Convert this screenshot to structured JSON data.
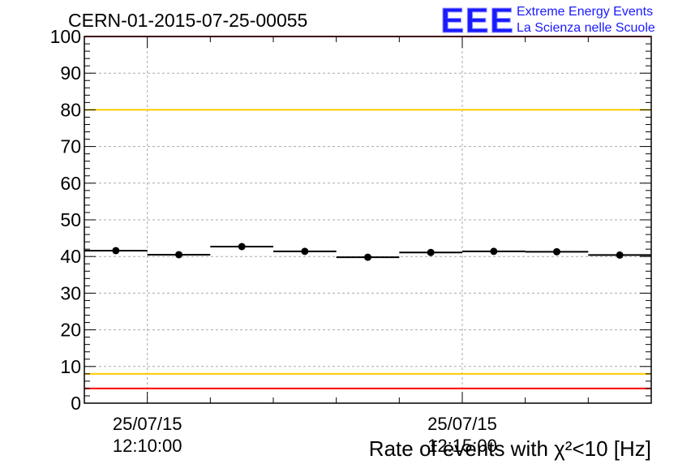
{
  "header": {
    "run_id": "CERN-01-2015-07-25-00055"
  },
  "logo": {
    "mark": "EEE",
    "line1": "Extreme Energy Events",
    "line2": "La Scienza nelle Scuole",
    "color": "#1a1aff"
  },
  "chart_data": {
    "type": "scatter",
    "title": "CERN-01-2015-07-25-00055",
    "xlabel": "Rate of events with χ²<10 [Hz]",
    "ylabel": "",
    "ylim": [
      0,
      100
    ],
    "yticks": [
      0,
      10,
      20,
      30,
      40,
      50,
      60,
      70,
      80,
      90,
      100
    ],
    "xticks": [
      {
        "x": 1,
        "date": "25/07/15",
        "time": "12:10:00"
      },
      {
        "x": 6,
        "date": "25/07/15",
        "time": "12:15:00"
      }
    ],
    "x_range_minutes": [
      0,
      9
    ],
    "x_start_time": "12:09:00",
    "grid": true,
    "points": [
      {
        "x_start": 0,
        "x_end": 1,
        "y": 41.6
      },
      {
        "x_start": 1,
        "x_end": 2,
        "y": 40.5
      },
      {
        "x_start": 2,
        "x_end": 3,
        "y": 42.7
      },
      {
        "x_start": 3,
        "x_end": 4,
        "y": 41.4
      },
      {
        "x_start": 4,
        "x_end": 5,
        "y": 39.8
      },
      {
        "x_start": 5,
        "x_end": 6,
        "y": 41.1
      },
      {
        "x_start": 6,
        "x_end": 7,
        "y": 41.4
      },
      {
        "x_start": 7,
        "x_end": 8,
        "y": 41.3
      },
      {
        "x_start": 8,
        "x_end": 9,
        "y": 40.4
      }
    ],
    "reference_lines": [
      {
        "y": 100,
        "color": "#ff0000"
      },
      {
        "y": 80,
        "color": "#ffcc00"
      },
      {
        "y": 8,
        "color": "#ffcc00"
      },
      {
        "y": 4,
        "color": "#ff0000"
      }
    ],
    "colors": {
      "points": "#000000",
      "grid": "#aaaaaa",
      "frame": "#000000"
    }
  }
}
